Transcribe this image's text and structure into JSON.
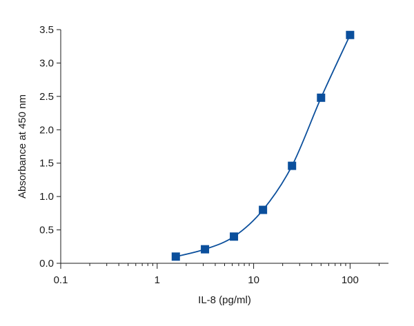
{
  "chart_data": {
    "type": "scatter",
    "title": "",
    "xlabel": "IL-8 (pg/ml)",
    "ylabel": "Absorbance at 450 nm",
    "xscale": "log",
    "xlim": [
      0.1,
      250
    ],
    "ylim": [
      0,
      3.5
    ],
    "grid": false,
    "color": "#0b4f9c",
    "xticks": [
      {
        "value": 0.1,
        "label": "0.1"
      },
      {
        "value": 1,
        "label": "1"
      },
      {
        "value": 10,
        "label": "10"
      },
      {
        "value": 100,
        "label": "100"
      }
    ],
    "yticks": [
      {
        "value": 0,
        "label": "0.0"
      },
      {
        "value": 0.5,
        "label": "0.5"
      },
      {
        "value": 1.0,
        "label": "1.0"
      },
      {
        "value": 1.5,
        "label": "1.5"
      },
      {
        "value": 2.0,
        "label": "2.0"
      },
      {
        "value": 2.5,
        "label": "2.5"
      },
      {
        "value": 3.0,
        "label": "3.0"
      },
      {
        "value": 3.5,
        "label": "3.5"
      }
    ],
    "series": [
      {
        "x": [
          1.56,
          3.13,
          6.25,
          12.5,
          25,
          50,
          100
        ],
        "y": [
          0.1,
          0.21,
          0.4,
          0.8,
          1.46,
          2.48,
          3.42
        ],
        "marker": "square",
        "fit_line": true
      }
    ]
  }
}
